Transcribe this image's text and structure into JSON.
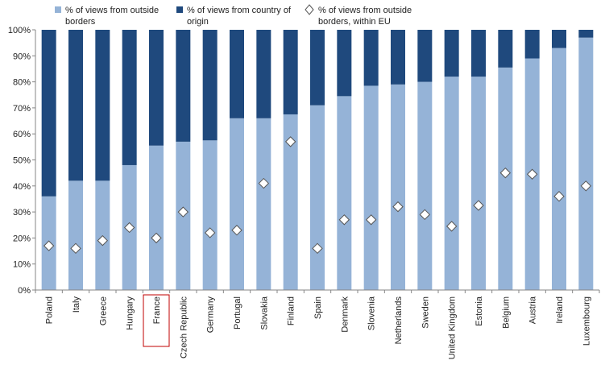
{
  "chart_data": {
    "type": "bar",
    "stacked": true,
    "categories": [
      "Poland",
      "Italy",
      "Greece",
      "Hungary",
      "France",
      "Czech Republic",
      "Germany",
      "Portugal",
      "Slovakia",
      "Finland",
      "Spain",
      "Denmark",
      "Slovenia",
      "Netherlands",
      "Sweden",
      "United Kingdom",
      "Estonia",
      "Belgium",
      "Austria",
      "Ireland",
      "Luxembourg"
    ],
    "series": [
      {
        "name": "% of views from outside borders",
        "color": "#95b3d7",
        "kind": "bar",
        "values": [
          36,
          42,
          42,
          48,
          55.5,
          57,
          57.5,
          66,
          66,
          67.5,
          71,
          74.5,
          78.5,
          79,
          80,
          82,
          82,
          85.5,
          89,
          93,
          97
        ]
      },
      {
        "name": "% of views from country of origin",
        "color": "#1f497d",
        "kind": "bar",
        "values": [
          64,
          58,
          58,
          52,
          44.5,
          43,
          42.5,
          34,
          34,
          32.5,
          29,
          25.5,
          21.5,
          21,
          20,
          18,
          18,
          14.5,
          11,
          7,
          3
        ]
      },
      {
        "name": "% of views from outside borders, within EU",
        "color": "#ffffff",
        "kind": "marker",
        "marker": "diamond",
        "values": [
          17,
          16,
          19,
          24,
          20,
          30,
          22,
          23,
          41,
          57,
          16,
          27,
          27,
          32,
          29,
          24.5,
          32.5,
          45,
          44.5,
          36,
          40
        ]
      }
    ],
    "y_ticks": [
      "0%",
      "10%",
      "20%",
      "30%",
      "40%",
      "50%",
      "60%",
      "70%",
      "80%",
      "90%",
      "100%"
    ],
    "ylim": [
      0,
      100
    ],
    "legend": {
      "position": "top",
      "items": [
        {
          "lines": [
            "% of views from outside",
            "borders"
          ]
        },
        {
          "lines": [
            "% of views from country of",
            "origin"
          ]
        },
        {
          "lines": [
            "% of views from outside",
            "borders, within EU"
          ]
        }
      ]
    },
    "highlighted_category": "France",
    "highlight_color": "#c00000",
    "grid": false
  }
}
